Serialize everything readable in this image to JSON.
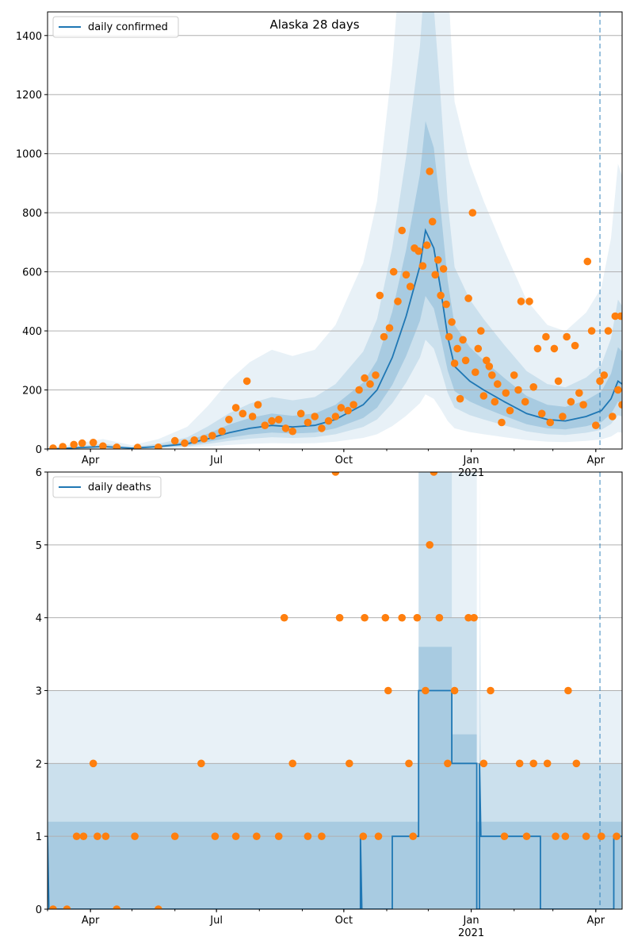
{
  "chart_data": [
    {
      "type": "line",
      "title": "Alaska 28 days",
      "xlabel": "",
      "ylabel": "",
      "x_start": "2020-03-01",
      "xlim": [
        "2020-03-01",
        "2021-04-20"
      ],
      "ylim": [
        0,
        1480
      ],
      "yticks": [
        0,
        200,
        400,
        600,
        800,
        1000,
        1200,
        1400
      ],
      "xticks": [
        {
          "date": "2020-04-01",
          "label": "Apr",
          "sublabel": ""
        },
        {
          "date": "2020-07-01",
          "label": "Jul",
          "sublabel": ""
        },
        {
          "date": "2020-10-01",
          "label": "Oct",
          "sublabel": ""
        },
        {
          "date": "2021-01-01",
          "label": "Jan",
          "sublabel": "2021"
        },
        {
          "date": "2021-04-01",
          "label": "Apr",
          "sublabel": ""
        }
      ],
      "grid": "y",
      "vline_date": "2021-04-04",
      "legend": {
        "placement": "top-left",
        "entries": [
          "daily confirmed"
        ]
      },
      "series": [
        {
          "name": "daily confirmed",
          "kind": "line",
          "points": [
            [
              "2020-03-01",
              0
            ],
            [
              "2020-03-25",
              5
            ],
            [
              "2020-04-10",
              8
            ],
            [
              "2020-05-01",
              3
            ],
            [
              "2020-05-20",
              8
            ],
            [
              "2020-06-10",
              18
            ],
            [
              "2020-06-25",
              35
            ],
            [
              "2020-07-10",
              55
            ],
            [
              "2020-07-25",
              70
            ],
            [
              "2020-08-10",
              80
            ],
            [
              "2020-08-25",
              75
            ],
            [
              "2020-09-10",
              80
            ],
            [
              "2020-09-25",
              100
            ],
            [
              "2020-10-05",
              125
            ],
            [
              "2020-10-15",
              150
            ],
            [
              "2020-10-25",
              200
            ],
            [
              "2020-11-05",
              310
            ],
            [
              "2020-11-15",
              450
            ],
            [
              "2020-11-25",
              620
            ],
            [
              "2020-11-29",
              740
            ],
            [
              "2020-12-05",
              680
            ],
            [
              "2020-12-10",
              540
            ],
            [
              "2020-12-15",
              380
            ],
            [
              "2020-12-20",
              280
            ],
            [
              "2020-12-31",
              230
            ],
            [
              "2021-01-10",
              200
            ],
            [
              "2021-01-25",
              160
            ],
            [
              "2021-02-10",
              120
            ],
            [
              "2021-02-25",
              100
            ],
            [
              "2021-03-10",
              95
            ],
            [
              "2021-03-25",
              110
            ],
            [
              "2021-04-05",
              130
            ],
            [
              "2021-04-12",
              170
            ],
            [
              "2021-04-17",
              230
            ],
            [
              "2021-04-20",
              220
            ]
          ]
        },
        {
          "name": "",
          "kind": "points",
          "points": [
            [
              "2020-03-05",
              3
            ],
            [
              "2020-03-12",
              8
            ],
            [
              "2020-03-20",
              15
            ],
            [
              "2020-03-26",
              20
            ],
            [
              "2020-04-03",
              22
            ],
            [
              "2020-04-10",
              10
            ],
            [
              "2020-04-20",
              6
            ],
            [
              "2020-05-05",
              5
            ],
            [
              "2020-05-20",
              6
            ],
            [
              "2020-06-01",
              28
            ],
            [
              "2020-06-08",
              20
            ],
            [
              "2020-06-15",
              30
            ],
            [
              "2020-06-22",
              35
            ],
            [
              "2020-06-28",
              45
            ],
            [
              "2020-07-05",
              60
            ],
            [
              "2020-07-10",
              100
            ],
            [
              "2020-07-15",
              140
            ],
            [
              "2020-07-20",
              120
            ],
            [
              "2020-07-23",
              230
            ],
            [
              "2020-07-27",
              110
            ],
            [
              "2020-07-31",
              150
            ],
            [
              "2020-08-05",
              80
            ],
            [
              "2020-08-10",
              95
            ],
            [
              "2020-08-15",
              100
            ],
            [
              "2020-08-20",
              70
            ],
            [
              "2020-08-25",
              60
            ],
            [
              "2020-08-31",
              120
            ],
            [
              "2020-09-05",
              90
            ],
            [
              "2020-09-10",
              110
            ],
            [
              "2020-09-15",
              70
            ],
            [
              "2020-09-20",
              95
            ],
            [
              "2020-09-25",
              110
            ],
            [
              "2020-09-29",
              140
            ],
            [
              "2020-10-04",
              130
            ],
            [
              "2020-10-08",
              150
            ],
            [
              "2020-10-12",
              200
            ],
            [
              "2020-10-16",
              240
            ],
            [
              "2020-10-20",
              220
            ],
            [
              "2020-10-24",
              250
            ],
            [
              "2020-10-27",
              520
            ],
            [
              "2020-10-30",
              380
            ],
            [
              "2020-11-03",
              410
            ],
            [
              "2020-11-06",
              600
            ],
            [
              "2020-11-09",
              500
            ],
            [
              "2020-11-12",
              740
            ],
            [
              "2020-11-15",
              590
            ],
            [
              "2020-11-18",
              550
            ],
            [
              "2020-11-21",
              680
            ],
            [
              "2020-11-24",
              670
            ],
            [
              "2020-11-27",
              620
            ],
            [
              "2020-11-30",
              690
            ],
            [
              "2020-12-02",
              940
            ],
            [
              "2020-12-04",
              770
            ],
            [
              "2020-12-06",
              590
            ],
            [
              "2020-12-08",
              640
            ],
            [
              "2020-12-10",
              520
            ],
            [
              "2020-12-12",
              610
            ],
            [
              "2020-12-14",
              490
            ],
            [
              "2020-12-16",
              380
            ],
            [
              "2020-12-18",
              430
            ],
            [
              "2020-12-20",
              290
            ],
            [
              "2020-12-22",
              340
            ],
            [
              "2020-12-24",
              170
            ],
            [
              "2020-12-26",
              370
            ],
            [
              "2020-12-28",
              300
            ],
            [
              "2020-12-30",
              510
            ],
            [
              "2021-01-02",
              800
            ],
            [
              "2021-01-04",
              260
            ],
            [
              "2021-01-06",
              340
            ],
            [
              "2021-01-08",
              400
            ],
            [
              "2021-01-10",
              180
            ],
            [
              "2021-01-12",
              300
            ],
            [
              "2021-01-14",
              280
            ],
            [
              "2021-01-16",
              250
            ],
            [
              "2021-01-18",
              160
            ],
            [
              "2021-01-20",
              220
            ],
            [
              "2021-01-23",
              90
            ],
            [
              "2021-01-26",
              190
            ],
            [
              "2021-01-29",
              130
            ],
            [
              "2021-02-01",
              250
            ],
            [
              "2021-02-04",
              200
            ],
            [
              "2021-02-06",
              500
            ],
            [
              "2021-02-09",
              160
            ],
            [
              "2021-02-12",
              500
            ],
            [
              "2021-02-15",
              210
            ],
            [
              "2021-02-18",
              340
            ],
            [
              "2021-02-21",
              120
            ],
            [
              "2021-02-24",
              380
            ],
            [
              "2021-02-27",
              90
            ],
            [
              "2021-03-02",
              340
            ],
            [
              "2021-03-05",
              230
            ],
            [
              "2021-03-08",
              110
            ],
            [
              "2021-03-11",
              380
            ],
            [
              "2021-03-14",
              160
            ],
            [
              "2021-03-17",
              350
            ],
            [
              "2021-03-20",
              190
            ],
            [
              "2021-03-23",
              150
            ],
            [
              "2021-03-26",
              635
            ],
            [
              "2021-03-29",
              400
            ],
            [
              "2021-04-01",
              80
            ],
            [
              "2021-04-04",
              230
            ],
            [
              "2021-04-07",
              250
            ],
            [
              "2021-04-10",
              400
            ],
            [
              "2021-04-13",
              110
            ],
            [
              "2021-04-15",
              450
            ],
            [
              "2021-04-17",
              200
            ],
            [
              "2021-04-19",
              450
            ],
            [
              "2021-04-20",
              150
            ]
          ]
        }
      ]
    },
    {
      "type": "line",
      "title": "",
      "xlabel": "",
      "ylabel": "",
      "x_start": "2020-03-01",
      "xlim": [
        "2020-03-01",
        "2021-04-20"
      ],
      "ylim": [
        0,
        6
      ],
      "yticks": [
        0,
        1,
        2,
        3,
        4,
        5,
        6
      ],
      "xticks": [
        {
          "date": "2020-04-01",
          "label": "Apr",
          "sublabel": ""
        },
        {
          "date": "2020-07-01",
          "label": "Jul",
          "sublabel": ""
        },
        {
          "date": "2020-10-01",
          "label": "Oct",
          "sublabel": ""
        },
        {
          "date": "2021-01-01",
          "label": "Jan",
          "sublabel": "2021"
        },
        {
          "date": "2021-04-01",
          "label": "Apr",
          "sublabel": ""
        }
      ],
      "grid": "y",
      "vline_date": "2021-04-04",
      "legend": {
        "placement": "top-left",
        "entries": [
          "daily deaths"
        ]
      },
      "series": [
        {
          "name": "daily deaths",
          "kind": "line",
          "points": [
            [
              "2020-03-01",
              1
            ],
            [
              "2020-03-02",
              0
            ],
            [
              "2020-10-13",
              0
            ],
            [
              "2020-10-13",
              1
            ],
            [
              "2020-10-14",
              0
            ],
            [
              "2020-10-15",
              0
            ],
            [
              "2020-11-05",
              0
            ],
            [
              "2020-11-05",
              1
            ],
            [
              "2020-11-24",
              1
            ],
            [
              "2020-11-24",
              3
            ],
            [
              "2020-12-18",
              3
            ],
            [
              "2020-12-18",
              2
            ],
            [
              "2021-01-05",
              2
            ],
            [
              "2021-01-05",
              0
            ],
            [
              "2021-01-07",
              0
            ],
            [
              "2021-01-07",
              2
            ],
            [
              "2021-01-08",
              1
            ],
            [
              "2021-02-20",
              1
            ],
            [
              "2021-02-20",
              0
            ],
            [
              "2021-04-14",
              0
            ],
            [
              "2021-04-14",
              1
            ],
            [
              "2021-04-20",
              1
            ]
          ]
        },
        {
          "name": "",
          "kind": "points",
          "points": [
            [
              "2020-03-05",
              0
            ],
            [
              "2020-03-15",
              0
            ],
            [
              "2020-03-22",
              1
            ],
            [
              "2020-03-27",
              1
            ],
            [
              "2020-04-03",
              2
            ],
            [
              "2020-04-06",
              1
            ],
            [
              "2020-04-12",
              1
            ],
            [
              "2020-04-20",
              0
            ],
            [
              "2020-05-03",
              1
            ],
            [
              "2020-05-20",
              0
            ],
            [
              "2020-06-01",
              1
            ],
            [
              "2020-06-20",
              2
            ],
            [
              "2020-06-30",
              1
            ],
            [
              "2020-07-15",
              1
            ],
            [
              "2020-07-30",
              1
            ],
            [
              "2020-08-15",
              1
            ],
            [
              "2020-08-19",
              4
            ],
            [
              "2020-08-25",
              2
            ],
            [
              "2020-09-05",
              1
            ],
            [
              "2020-09-15",
              1
            ],
            [
              "2020-09-25",
              6
            ],
            [
              "2020-09-28",
              4
            ],
            [
              "2020-10-05",
              2
            ],
            [
              "2020-10-15",
              1
            ],
            [
              "2020-10-16",
              4
            ],
            [
              "2020-10-26",
              1
            ],
            [
              "2020-10-31",
              4
            ],
            [
              "2020-11-02",
              3
            ],
            [
              "2020-11-12",
              4
            ],
            [
              "2020-11-17",
              2
            ],
            [
              "2020-11-20",
              1
            ],
            [
              "2020-11-23",
              4
            ],
            [
              "2020-11-29",
              3
            ],
            [
              "2020-12-02",
              5
            ],
            [
              "2020-12-05",
              6
            ],
            [
              "2020-12-09",
              4
            ],
            [
              "2020-12-15",
              2
            ],
            [
              "2020-12-20",
              3
            ],
            [
              "2020-12-30",
              4
            ],
            [
              "2021-01-03",
              4
            ],
            [
              "2021-01-10",
              2
            ],
            [
              "2021-01-15",
              3
            ],
            [
              "2021-01-25",
              1
            ],
            [
              "2021-02-05",
              2
            ],
            [
              "2021-02-10",
              1
            ],
            [
              "2021-02-15",
              2
            ],
            [
              "2021-02-25",
              2
            ],
            [
              "2021-03-03",
              1
            ],
            [
              "2021-03-10",
              1
            ],
            [
              "2021-03-12",
              3
            ],
            [
              "2021-03-18",
              2
            ],
            [
              "2021-03-25",
              1
            ],
            [
              "2021-04-05",
              1
            ],
            [
              "2021-04-16",
              1
            ]
          ]
        }
      ]
    }
  ]
}
